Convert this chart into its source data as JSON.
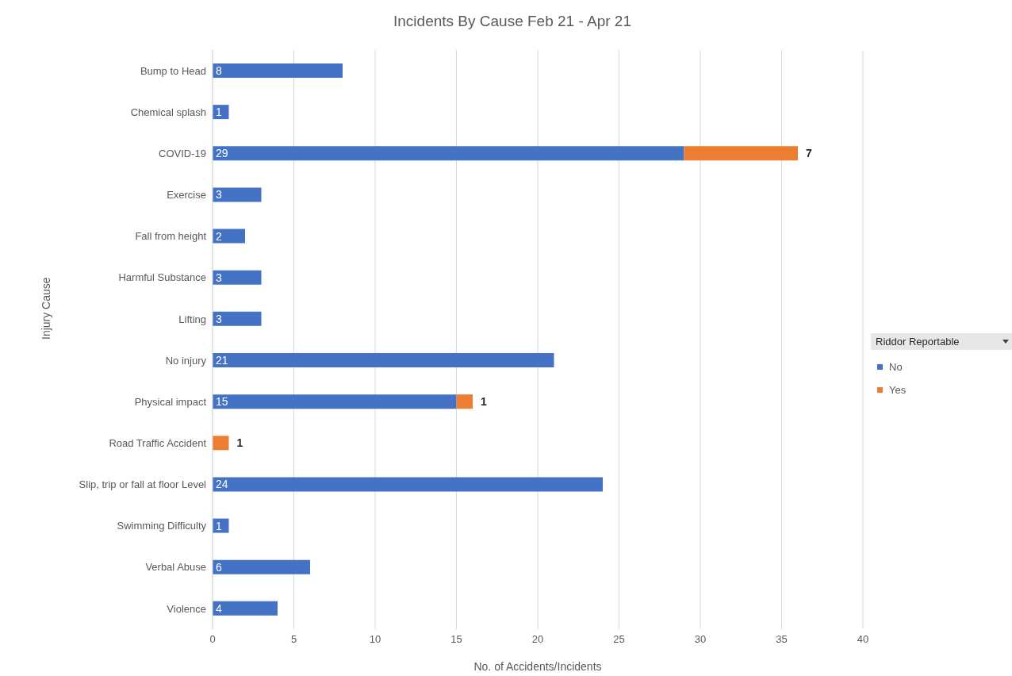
{
  "chart_data": {
    "type": "bar",
    "orientation": "horizontal",
    "stacked": true,
    "title": "Incidents By Cause Feb 21 - Apr 21",
    "xlabel": "No. of Accidents/Incidents",
    "ylabel": "Injury Cause",
    "legend_title": "Riddor Reportable",
    "legend": "right",
    "grid": "x",
    "categories": [
      "Bump to Head",
      "Chemical splash",
      "COVID-19",
      "Exercise",
      "Fall from height",
      "Harmful Substance",
      "Lifting",
      "No injury",
      "Physical impact",
      "Road Traffic Accident",
      "Slip, trip or fall at floor Level",
      "Swimming Difficulty",
      "Verbal Abuse",
      "Violence"
    ],
    "series": [
      {
        "name": "No",
        "color": "#4472c4",
        "values": [
          8,
          1,
          29,
          3,
          2,
          3,
          3,
          21,
          15,
          null,
          24,
          1,
          6,
          4
        ],
        "value_labels": [
          "8",
          "1",
          "29",
          "3",
          "2",
          "3",
          "3",
          "21",
          "15",
          null,
          "24",
          "1",
          "6",
          "4"
        ]
      },
      {
        "name": "Yes",
        "color": "#ed7d31",
        "values": [
          null,
          null,
          7,
          null,
          null,
          null,
          null,
          null,
          1,
          1,
          null,
          null,
          null,
          null
        ],
        "value_labels": [
          null,
          null,
          "7",
          null,
          null,
          null,
          null,
          null,
          "1",
          "1",
          null,
          null,
          null,
          null
        ]
      }
    ],
    "xlim": [
      0,
      40
    ],
    "xticks": [
      0,
      5,
      10,
      15,
      20,
      25,
      30,
      35,
      40
    ]
  }
}
